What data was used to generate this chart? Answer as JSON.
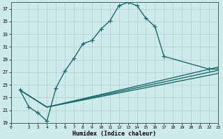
{
  "xlabel": "Humidex (Indice chaleur)",
  "background_color": "#ceeaeb",
  "grid_color": "#b0d0d0",
  "line_color": "#1a6b6b",
  "xlim": [
    0,
    23
  ],
  "ylim": [
    19,
    38
  ],
  "xticks": [
    0,
    2,
    3,
    4,
    5,
    6,
    7,
    8,
    9,
    10,
    11,
    12,
    13,
    14,
    15,
    16,
    17,
    18,
    19,
    20,
    21,
    22,
    23
  ],
  "yticks": [
    19,
    21,
    23,
    25,
    27,
    29,
    31,
    33,
    35,
    37
  ],
  "main_curve_x": [
    1,
    2,
    3,
    4,
    5,
    6,
    7,
    8,
    9,
    10,
    11,
    12,
    13,
    14,
    15,
    16,
    17,
    22,
    23
  ],
  "main_curve_y": [
    24.2,
    21.5,
    20.6,
    19.3,
    24.5,
    27.2,
    29.2,
    31.5,
    32.0,
    33.8,
    35.1,
    37.5,
    38.0,
    37.5,
    35.5,
    34.2,
    29.5,
    27.5,
    27.5
  ],
  "line1_x": [
    1,
    4,
    23
  ],
  "line1_y": [
    24.2,
    21.5,
    27.8
  ],
  "line2_x": [
    1,
    4,
    23
  ],
  "line2_y": [
    24.2,
    21.5,
    27.3
  ],
  "line3_x": [
    1,
    4,
    23
  ],
  "line3_y": [
    24.2,
    21.5,
    26.8
  ],
  "marker_size": 4,
  "line_width": 1.0
}
